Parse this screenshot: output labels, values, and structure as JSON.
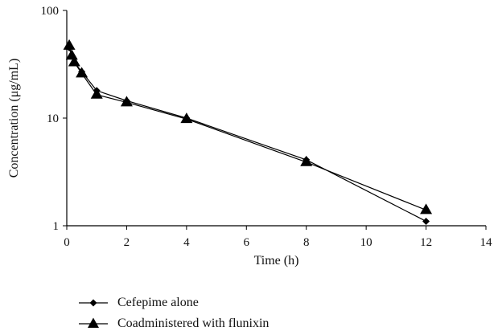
{
  "chart_data": {
    "type": "line",
    "title": "",
    "xlabel": "Time (h)",
    "ylabel": "Concentration (μg/mL)",
    "xlim": [
      0,
      14
    ],
    "ylim": [
      1,
      100
    ],
    "y_scale": "log",
    "x_ticks": [
      "0",
      "2",
      "4",
      "6",
      "8",
      "10",
      "12",
      "14"
    ],
    "y_ticks": [
      "1",
      "10",
      "100"
    ],
    "grid": false,
    "legend_position": "bottom-left",
    "series": [
      {
        "name": "Cefepime alone",
        "marker": "diamond",
        "color": "#000000",
        "x": [
          0.083,
          0.167,
          0.25,
          0.5,
          1,
          2,
          4,
          8,
          12
        ],
        "y": [
          45,
          38,
          33,
          27,
          18,
          14.5,
          10,
          4.1,
          1.1
        ]
      },
      {
        "name": "Coadministered with flunixin",
        "marker": "triangle",
        "color": "#000000",
        "x": [
          0.083,
          0.167,
          0.25,
          0.5,
          1,
          2,
          4,
          8,
          12
        ],
        "y": [
          47,
          38,
          33,
          26,
          16.5,
          14,
          9.8,
          3.9,
          1.4
        ]
      }
    ]
  }
}
